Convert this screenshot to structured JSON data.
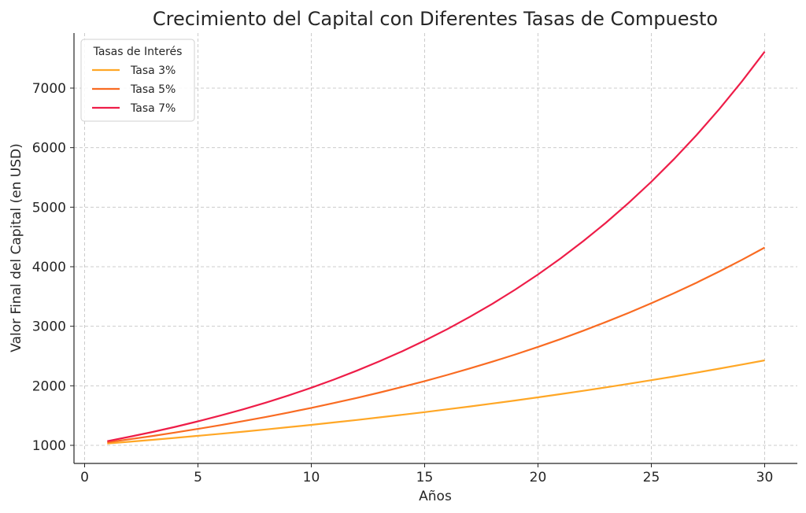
{
  "chart_data": {
    "type": "line",
    "title": "Crecimiento del Capital con Diferentes Tasas de Compuesto",
    "xlabel": "Años",
    "ylabel": "Valor Final del Capital (en USD)",
    "xlim": [
      -0.5,
      31.5
    ],
    "ylim": [
      700,
      7950
    ],
    "xticks": [
      0,
      5,
      10,
      15,
      20,
      25,
      30
    ],
    "yticks": [
      1000,
      2000,
      3000,
      4000,
      5000,
      6000,
      7000
    ],
    "grid": true,
    "legend": {
      "title": "Tasas de Interés",
      "placement": "top-left"
    },
    "x": [
      1,
      2,
      3,
      4,
      5,
      6,
      7,
      8,
      9,
      10,
      11,
      12,
      13,
      14,
      15,
      16,
      17,
      18,
      19,
      20,
      21,
      22,
      23,
      24,
      25,
      26,
      27,
      28,
      29,
      30
    ],
    "principal": 1000,
    "series": [
      {
        "name": "Tasa 3%",
        "rate": 0.03,
        "color": "#FFA726"
      },
      {
        "name": "Tasa 5%",
        "rate": 0.05,
        "color": "#F96B22"
      },
      {
        "name": "Tasa 7%",
        "rate": 0.07,
        "color": "#EE1D48"
      }
    ]
  }
}
